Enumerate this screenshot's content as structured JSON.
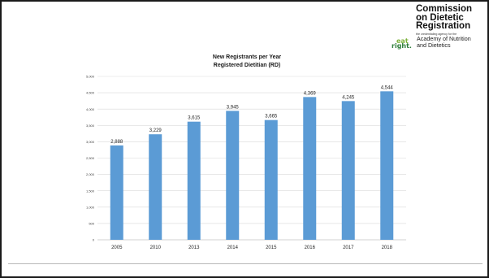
{
  "logo": {
    "title_lines": [
      "Commission",
      "on Dietetic",
      "Registration"
    ],
    "tagline": "the credentialing agency for the",
    "mark_top": "eat",
    "mark_bottom": "right.",
    "academy_lines": [
      "Academy of Nutrition",
      "and Dietetics"
    ]
  },
  "colors": {
    "bar": "#5b9bd5",
    "grid": "#d9d9d9",
    "axis": "#a6a6a6",
    "text": "#404040"
  },
  "chart_data": {
    "type": "bar",
    "title": "New Registrants per Year",
    "subtitle": "Registered Dietitian (RD)",
    "categories": [
      "2005",
      "2010",
      "2013",
      "2014",
      "2015",
      "2016",
      "2017",
      "2018"
    ],
    "values": [
      2888,
      3229,
      3615,
      3945,
      3665,
      4369,
      4245,
      4544
    ],
    "value_labels": [
      "2,888",
      "3,229",
      "3,615",
      "3,945",
      "3,665",
      "4,369",
      "4,245",
      "4,544"
    ],
    "ylim": [
      0,
      5000
    ],
    "y_ticks": [
      0,
      500,
      1000,
      1500,
      2000,
      2500,
      3000,
      3500,
      4000,
      4500,
      5000
    ],
    "y_tick_labels": [
      "0",
      "500",
      "1,000",
      "1,500",
      "2,000",
      "2,500",
      "3,000",
      "3,500",
      "4,000",
      "4,500",
      "5,000"
    ],
    "grid": true,
    "legend": "none"
  }
}
